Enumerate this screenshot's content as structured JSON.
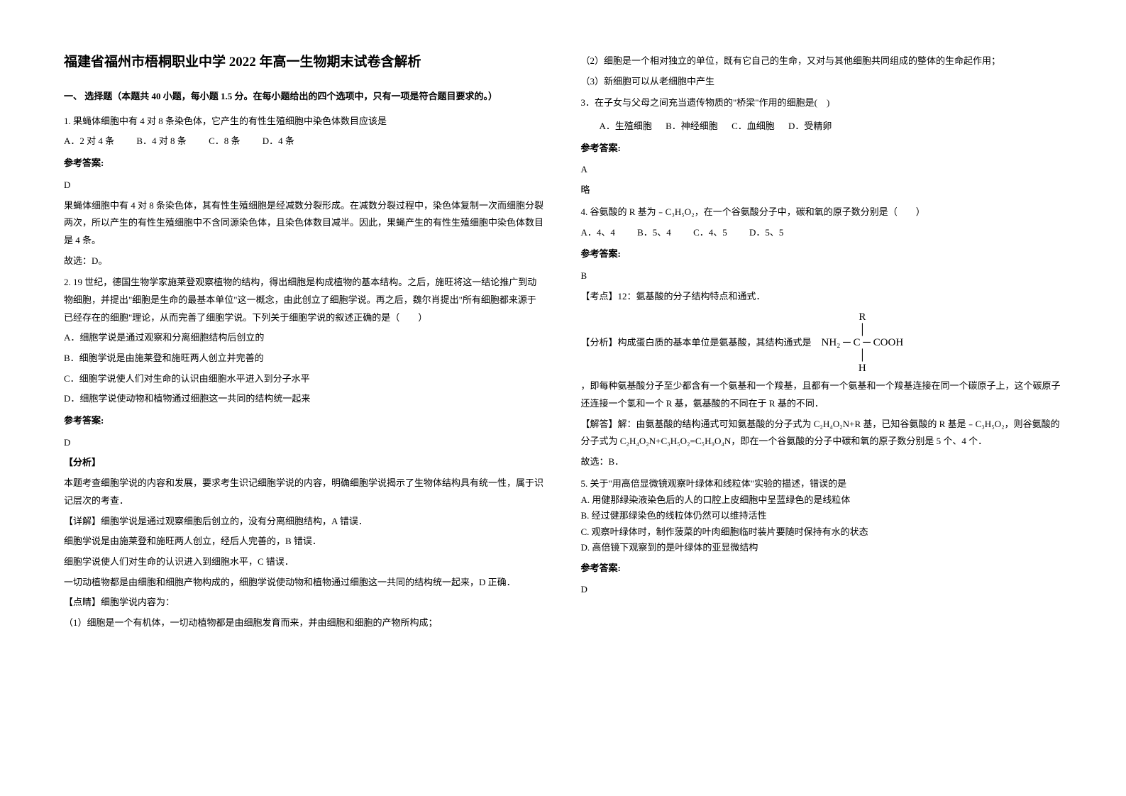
{
  "title": "福建省福州市梧桐职业中学 2022 年高一生物期末试卷含解析",
  "section1": {
    "header_pre": "一、 选择题（本题共 ",
    "count": "40",
    "header_mid": " 小题，每小题 ",
    "score": "1.5",
    "header_post": " 分。在每小题给出的四个选项中，只有一项是符合题目要求的。）"
  },
  "q1": {
    "text": "1. 果蝇体细胞中有 4 对 8 条染色体，它产生的有性生殖细胞中染色体数目应该是",
    "optA": "A．2 对 4 条",
    "optB": "B．4 对 8 条",
    "optC": "C．8 条",
    "optD": "D．4 条",
    "answer_label": "参考答案:",
    "answer": "D",
    "explain1": "果蝇体细胞中有 4 对 8 条染色体，其有性生殖细胞是经减数分裂形成。在减数分裂过程中，染色体复制一次而细胞分裂两次，所以产生的有性生殖细胞中不含同源染色体，且染色体数目减半。因此，果蝇产生的有性生殖细胞中染色体数目是 4 条。",
    "explain2": "故选：D。"
  },
  "q2": {
    "text": "2. 19 世纪，德国生物学家施莱登观察植物的结构，得出细胞是构成植物的基本结构。之后，施旺将这一结论推广到动物细胞，并提出\"细胞是生命的最基本单位\"这一概念，由此创立了细胞学说。再之后，魏尔肖提出\"所有细胞都来源于已经存在的细胞\"理论，从而完善了细胞学说。下列关于细胞学说的叙述正确的是（　　）",
    "optA": "A．细胞学说是通过观察和分离细胞结构后创立的",
    "optB": "B．细胞学说是由施莱登和施旺两人创立并完善的",
    "optC": "C．细胞学说使人们对生命的认识由细胞水平进入到分子水平",
    "optD": "D．细胞学说使动物和植物通过细胞这一共同的结构统一起来",
    "answer_label": "参考答案:",
    "answer": "D",
    "fx_label": "【分析】",
    "fx1": "本题考查细胞学说的内容和发展，要求考生识记细胞学说的内容，明确细胞学说揭示了生物体结构具有统一性，属于识记层次的考查．",
    "xj1": "【详解】细胞学说是通过观察细胞后创立的，没有分离细胞结构，A 错误．",
    "xj2": "细胞学说是由施莱登和施旺两人创立，经后人完善的，B 错误．",
    "xj3": "细胞学说使人们对生命的认识进入到细胞水平，C 错误．",
    "xj4": "一切动植物都是由细胞和细胞产物构成的，细胞学说使动物和植物通过细胞这一共同的结构统一起来，D 正确．",
    "dj_label": "【点睛】细胞学说内容为：",
    "dj1": "（1）细胞是一个有机体，一切动植物都是由细胞发育而来，并由细胞和细胞的产物所构成；",
    "dj2": "（2）细胞是一个相对独立的单位，既有它自己的生命，又对与其他细胞共同组成的整体的生命起作用；",
    "dj3": "（3）新细胞可以从老细胞中产生"
  },
  "q3": {
    "text": "3．在子女与父母之间充当遗传物质的\"桥梁\"作用的细胞是(　)",
    "optA": "A．生殖细胞",
    "optB": "B．神经细胞",
    "optC": "C．血细胞",
    "optD": "D．受精卵",
    "answer_label": "参考答案:",
    "answer": "A",
    "brief": "略"
  },
  "q4": {
    "text": "4. 谷氨酸的 R 基为﹣C₃H₅O₂，在一个谷氨酸分子中，碳和氧的原子数分别是（　　）",
    "optA": "A．4、4",
    "optB": "B．5、4",
    "optC": "C．4、5",
    "optD": "D．5、5",
    "answer_label": "参考答案:",
    "answer": "B",
    "kd": "【考点】12：氨基酸的分子结构特点和通式．",
    "fx_pre": "【分析】构成蛋白质的基本单位是氨基酸，其结构通式是",
    "fx_post": "，即每种氨基酸分子至少都含有一个氨基和一个羧基，且都有一个氨基和一个羧基连接在同一个碳原子上，这个碳原子还连接一个氢和一个 R 基，氨基酸的不同在于 R 基的不同．",
    "jd": "【解答】解：由氨基酸的结构通式可知氨基酸的分子式为 C₂H₄O₂N+R 基，已知谷氨酸的 R 基是﹣C₃H₅O₂，则谷氨酸的分子式为 C₂H₄O₂N+C₃H₅O₂=C₅H₉O₄N，即在一个谷氨酸的分子中碳和氧的原子数分别是 5 个、4 个．",
    "jd2": "故选：B．",
    "formula": {
      "r1": "R",
      "r2": "│",
      "r3": "NH₂ ─ C ─ COOH",
      "r4": "│",
      "r5": "H"
    }
  },
  "q5": {
    "text": "5. 关于\"用高倍显微镜观察叶绿体和线粒体\"实验的描述，错误的是",
    "optA": "A. 用健那绿染液染色后的人的口腔上皮细胞中呈蓝绿色的是线粒体",
    "optB": "B. 经过健那绿染色的线粒体仍然可以维持活性",
    "optC": "C. 观察叶绿体时，制作菠菜的叶肉细胞临时装片要随时保持有水的状态",
    "optD": "D. 高倍镜下观察到的是叶绿体的亚显微结构",
    "answer_label": "参考答案:",
    "answer": "D"
  }
}
